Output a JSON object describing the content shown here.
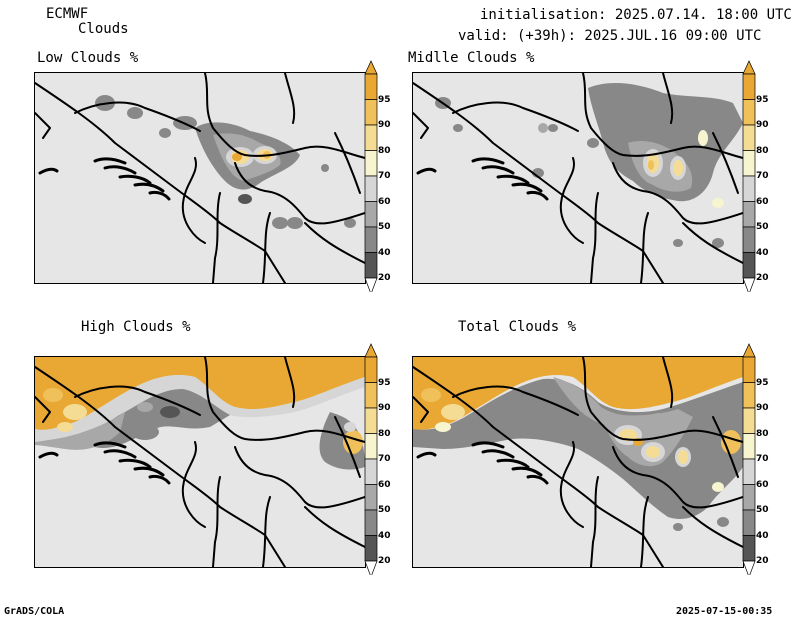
{
  "header": {
    "source": "ECMWF",
    "field": "Clouds",
    "init_line": "initialisation: 2025.07.14. 18:00 UTC",
    "valid_line": "valid: (+39h): 2025.JUL.16 09:00 UTC"
  },
  "panels": [
    {
      "title": "Low Clouds %"
    },
    {
      "title": "Midlle Clouds %"
    },
    {
      "title": "High Clouds %"
    },
    {
      "title": "Total Clouds %"
    }
  ],
  "colorbar": {
    "labels": [
      "95",
      "90",
      "80",
      "70",
      "60",
      "50",
      "40",
      "20"
    ],
    "colors": [
      "#e8a833",
      "#f0c05a",
      "#f5dc95",
      "#f7f5cf",
      "#d6d6d6",
      "#a8a8a8",
      "#888888",
      "#555555"
    ],
    "background": "#e6e6e6"
  },
  "footer": {
    "left": "GrADS/COLA",
    "right": "2025-07-15-00:35"
  }
}
